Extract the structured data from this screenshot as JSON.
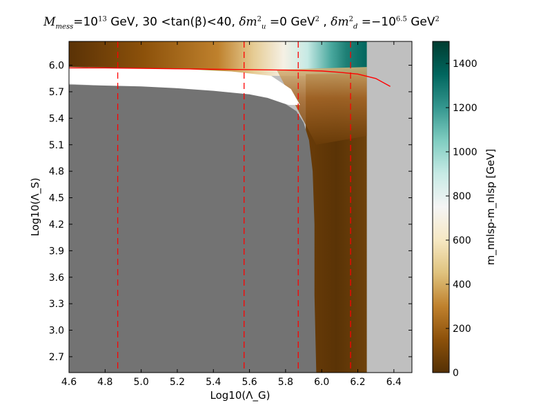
{
  "chart_data": {
    "type": "heatmap",
    "title": {
      "m_label": "M",
      "m_sub": "mess",
      "m_eq": "=10",
      "m_exp": "13",
      "m_unit": " GeV, ",
      "tb_low": "30",
      "tb_lt1": " <",
      "tb_func": "tan(β)",
      "tb_lt2": "<",
      "tb_high": "40, ",
      "du_label": "δm",
      "du_sup": "2",
      "du_sub": "u",
      "du_eq": " =0 GeV",
      "du_unit_sup": "2",
      "sep": " , ",
      "dd_label": "δm",
      "dd_sup": "2",
      "dd_sub": "d",
      "dd_eq": " =−10",
      "dd_exp": "6.5",
      "dd_unit": "  GeV",
      "dd_unit_sup": "2"
    },
    "xlabel": "Log10(Λ_G)",
    "ylabel": "Log10(Λ_S)",
    "xlim": [
      4.6,
      6.5
    ],
    "ylim": [
      2.52,
      6.27
    ],
    "x_ticks": [
      "4.6",
      "4.8",
      "5.0",
      "5.2",
      "5.4",
      "5.6",
      "5.8",
      "6.0",
      "6.2",
      "6.4"
    ],
    "y_ticks": [
      "2.7",
      "3.0",
      "3.3",
      "3.6",
      "3.9",
      "4.2",
      "4.5",
      "4.8",
      "5.1",
      "5.4",
      "5.7",
      "6.0"
    ],
    "colorbar": {
      "label": "m_nnlsp-m_nlsp [GeV]",
      "min": 0,
      "max": 1500,
      "ticks": [
        "0",
        "200",
        "400",
        "600",
        "800",
        "1000",
        "1200",
        "1400"
      ]
    },
    "regions": {
      "excluded_gray_boundary": [
        [
          4.6,
          5.78
        ],
        [
          4.8,
          5.77
        ],
        [
          5.0,
          5.76
        ],
        [
          5.2,
          5.74
        ],
        [
          5.4,
          5.71
        ],
        [
          5.6,
          5.67
        ],
        [
          5.7,
          5.63
        ],
        [
          5.8,
          5.56
        ],
        [
          5.86,
          5.48
        ],
        [
          5.9,
          5.35
        ],
        [
          5.93,
          5.15
        ],
        [
          5.95,
          4.8
        ],
        [
          5.96,
          4.2
        ],
        [
          5.96,
          3.4
        ],
        [
          5.97,
          2.52
        ]
      ],
      "valid_right_edge": 6.25,
      "valid_top_edge": 6.26
    },
    "red_contour": [
      [
        4.6,
        5.97
      ],
      [
        4.8,
        5.97
      ],
      [
        5.0,
        5.965
      ],
      [
        5.2,
        5.96
      ],
      [
        5.4,
        5.955
      ],
      [
        5.6,
        5.95
      ],
      [
        5.8,
        5.945
      ],
      [
        6.0,
        5.935
      ],
      [
        6.1,
        5.92
      ],
      [
        6.2,
        5.9
      ],
      [
        6.3,
        5.85
      ],
      [
        6.38,
        5.76
      ]
    ],
    "dashed_lines_x": [
      4.87,
      5.57,
      5.87,
      6.16
    ],
    "colors": {
      "excluded": "#737373",
      "outside_grid": "#bfbfbf",
      "white_band": "#ffffff",
      "contour": "#ff0000",
      "colormap": [
        "#543005",
        "#8c510a",
        "#bf812d",
        "#dfc27d",
        "#f6e8c3",
        "#f5f5f5",
        "#c7eae5",
        "#80cdc1",
        "#35978f",
        "#01665e",
        "#003c30"
      ]
    }
  }
}
